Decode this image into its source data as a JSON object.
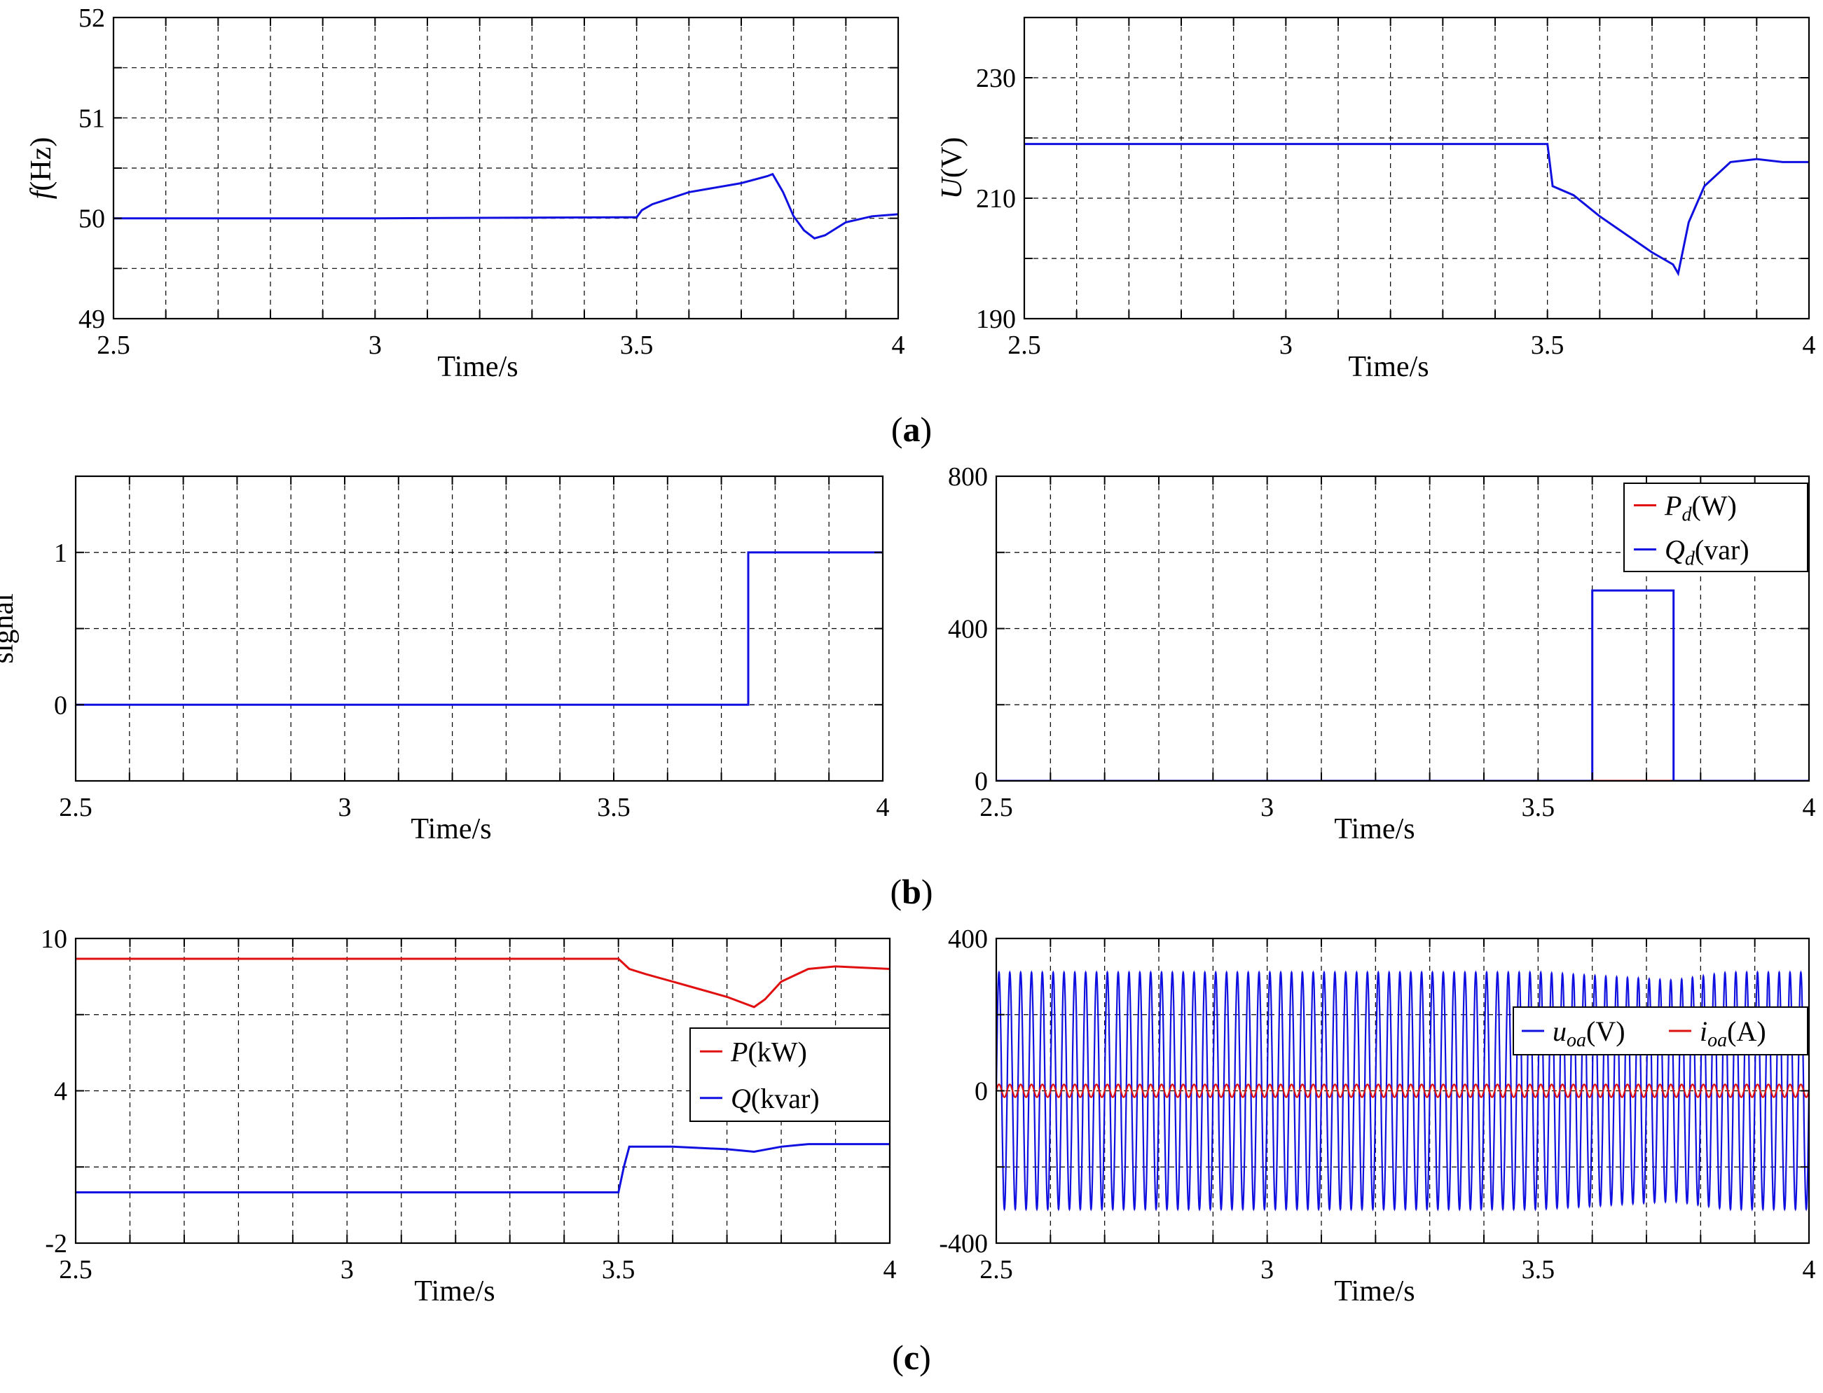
{
  "panel_labels": [
    "a",
    "b",
    "c"
  ],
  "chart_data": [
    {
      "type": "line",
      "id": "freq",
      "xlabel": "Time/s",
      "ylabel_italic": "f",
      "ylabel_rest": "(Hz)",
      "xlim": [
        2.5,
        4
      ],
      "ylim": [
        49,
        52
      ],
      "xticks": [
        2.5,
        3,
        3.5,
        4
      ],
      "xtick_labels": [
        "2.5",
        "3",
        "3.5",
        "4"
      ],
      "yticks": [
        49,
        50,
        51,
        52
      ],
      "ytick_labels": [
        "49",
        "50",
        "51",
        "52"
      ],
      "xgrid": [
        2.6,
        2.7,
        2.8,
        2.9,
        3.0,
        3.1,
        3.2,
        3.3,
        3.4,
        3.5,
        3.6,
        3.7,
        3.8,
        3.9
      ],
      "ygrid": [
        49.5,
        50,
        50.5,
        51,
        51.5
      ],
      "series": [
        {
          "name": "f",
          "color": "#1010e0",
          "x": [
            2.5,
            3.0,
            3.5,
            3.51,
            3.53,
            3.6,
            3.7,
            3.75,
            3.76,
            3.78,
            3.8,
            3.82,
            3.84,
            3.86,
            3.9,
            3.95,
            4.0
          ],
          "y": [
            50.0,
            50.0,
            50.01,
            50.08,
            50.14,
            50.26,
            50.35,
            50.42,
            50.44,
            50.26,
            50.02,
            49.88,
            49.8,
            49.83,
            49.96,
            50.02,
            50.04
          ]
        }
      ]
    },
    {
      "type": "line",
      "id": "volt",
      "xlabel": "Time/s",
      "ylabel_italic": "U",
      "ylabel_rest": "(V)",
      "xlim": [
        2.5,
        4
      ],
      "ylim": [
        190,
        240
      ],
      "xticks": [
        2.5,
        3,
        3.5,
        4
      ],
      "xtick_labels": [
        "2.5",
        "3",
        "3.5",
        "4"
      ],
      "yticks": [
        190,
        210,
        230
      ],
      "ytick_labels": [
        "190",
        "210",
        "230"
      ],
      "xgrid": [
        2.6,
        2.7,
        2.8,
        2.9,
        3.0,
        3.1,
        3.2,
        3.3,
        3.4,
        3.5,
        3.6,
        3.7,
        3.8,
        3.9
      ],
      "ygrid": [
        200,
        210,
        220,
        230
      ],
      "series": [
        {
          "name": "U",
          "color": "#1010e0",
          "x": [
            2.5,
            3.499,
            3.5,
            3.51,
            3.55,
            3.6,
            3.65,
            3.7,
            3.74,
            3.75,
            3.77,
            3.8,
            3.85,
            3.9,
            3.95,
            4.0
          ],
          "y": [
            219,
            219,
            219,
            212,
            210.5,
            207,
            204,
            201,
            199,
            197.5,
            206,
            212,
            216,
            216.5,
            216,
            216
          ]
        }
      ]
    },
    {
      "type": "line",
      "id": "signal",
      "xlabel": "Time/s",
      "ylabel": "signal",
      "xlim": [
        2.5,
        4
      ],
      "ylim": [
        -0.5,
        1.5
      ],
      "xticks": [
        2.5,
        3,
        3.5,
        4
      ],
      "xtick_labels": [
        "2.5",
        "3",
        "3.5",
        "4"
      ],
      "yticks": [
        0,
        1
      ],
      "ytick_labels": [
        "0",
        "1"
      ],
      "xgrid": [
        2.6,
        2.7,
        2.8,
        2.9,
        3.0,
        3.1,
        3.2,
        3.3,
        3.4,
        3.5,
        3.6,
        3.7,
        3.8,
        3.9
      ],
      "ygrid": [
        0,
        0.5,
        1
      ],
      "series": [
        {
          "name": "signal",
          "color": "#1010e0",
          "x": [
            2.5,
            3.75,
            3.75,
            4.0
          ],
          "y": [
            0,
            0,
            1,
            1
          ]
        }
      ]
    },
    {
      "type": "line",
      "id": "pdqd",
      "xlabel": "Time/s",
      "xlim": [
        2.5,
        4
      ],
      "ylim": [
        0,
        800
      ],
      "xticks": [
        2.5,
        3,
        3.5,
        4
      ],
      "xtick_labels": [
        "2.5",
        "3",
        "3.5",
        "4"
      ],
      "yticks": [
        0,
        400,
        800
      ],
      "ytick_labels": [
        "0",
        "400",
        "800"
      ],
      "xgrid": [
        2.6,
        2.7,
        2.8,
        2.9,
        3.0,
        3.1,
        3.2,
        3.3,
        3.4,
        3.5,
        3.6,
        3.7,
        3.8,
        3.9
      ],
      "ygrid": [
        200,
        400,
        600
      ],
      "legend": {
        "position": "top-right",
        "entries": [
          {
            "italic": "P",
            "sub": "d",
            "rest": "(W)",
            "color": "#e01010"
          },
          {
            "italic": "Q",
            "sub": "d",
            "rest": "(var)",
            "color": "#1010e0"
          }
        ]
      },
      "series": [
        {
          "name": "Pd",
          "color": "#e01010",
          "x": [
            3.6,
            3.75
          ],
          "y": [
            0,
            0
          ]
        },
        {
          "name": "Qd",
          "color": "#1010e0",
          "x": [
            2.5,
            3.6,
            3.6,
            3.75,
            3.75,
            4.0
          ],
          "y": [
            0,
            0,
            500,
            500,
            0,
            0
          ]
        }
      ]
    },
    {
      "type": "line",
      "id": "pq",
      "xlabel": "Time/s",
      "xlim": [
        2.5,
        4
      ],
      "ylim": [
        -2,
        10
      ],
      "xticks": [
        2.5,
        3,
        3.5,
        4
      ],
      "xtick_labels": [
        "2.5",
        "3",
        "3.5",
        "4"
      ],
      "yticks": [
        -2,
        4,
        10
      ],
      "ytick_labels": [
        "-2",
        "4",
        "10"
      ],
      "xgrid": [
        2.6,
        2.7,
        2.8,
        2.9,
        3.0,
        3.1,
        3.2,
        3.3,
        3.4,
        3.5,
        3.6,
        3.7,
        3.8,
        3.9
      ],
      "ygrid": [
        1,
        4,
        7
      ],
      "legend": {
        "position": "center-right",
        "entries": [
          {
            "italic": "P",
            "sub": "",
            "rest": "(kW)",
            "color": "#e01010"
          },
          {
            "italic": "Q",
            "sub": "",
            "rest": "(kvar)",
            "color": "#1010e0"
          }
        ]
      },
      "series": [
        {
          "name": "P",
          "color": "#e01010",
          "x": [
            2.5,
            3.0,
            3.5,
            3.52,
            3.55,
            3.6,
            3.65,
            3.7,
            3.75,
            3.77,
            3.8,
            3.85,
            3.9,
            4.0
          ],
          "y": [
            9.2,
            9.2,
            9.2,
            8.8,
            8.6,
            8.3,
            8.0,
            7.7,
            7.3,
            7.6,
            8.3,
            8.8,
            8.9,
            8.8
          ]
        },
        {
          "name": "Q",
          "color": "#1010e0",
          "x": [
            2.5,
            3.0,
            3.5,
            3.51,
            3.52,
            3.6,
            3.7,
            3.75,
            3.8,
            3.85,
            4.0
          ],
          "y": [
            0.0,
            0.0,
            0.0,
            1.0,
            1.8,
            1.8,
            1.7,
            1.6,
            1.8,
            1.9,
            1.9
          ]
        }
      ]
    },
    {
      "type": "line",
      "id": "uoa_ioa",
      "xlabel": "Time/s",
      "xlim": [
        2.5,
        4
      ],
      "ylim": [
        -400,
        400
      ],
      "xticks": [
        2.5,
        3,
        3.5,
        4
      ],
      "xtick_labels": [
        "2.5",
        "3",
        "3.5",
        "4"
      ],
      "yticks": [
        -400,
        0,
        400
      ],
      "ytick_labels": [
        "-400",
        "0",
        "400"
      ],
      "xgrid": [
        2.6,
        2.7,
        2.8,
        2.9,
        3.0,
        3.1,
        3.2,
        3.3,
        3.4,
        3.5,
        3.6,
        3.7,
        3.8,
        3.9
      ],
      "ygrid": [
        -200,
        0,
        200
      ],
      "legend": {
        "position": "upper-right",
        "entries": [
          {
            "italic": "u",
            "sub": "oa",
            "rest": "(V)",
            "color": "#1010e0"
          },
          {
            "italic": "i",
            "sub": "oa",
            "rest": "(A)",
            "color": "#e01010"
          }
        ]
      },
      "series": [
        {
          "name": "uoa",
          "color": "#1010e0",
          "kind": "sine",
          "frequency": 50,
          "amplitude": 311,
          "amplitude_dip": {
            "start": 3.5,
            "end": 3.75,
            "min_amplitude": 290
          }
        },
        {
          "name": "ioa",
          "color": "#e01010",
          "kind": "sine",
          "frequency": 50,
          "amplitude": 17
        }
      ]
    }
  ]
}
